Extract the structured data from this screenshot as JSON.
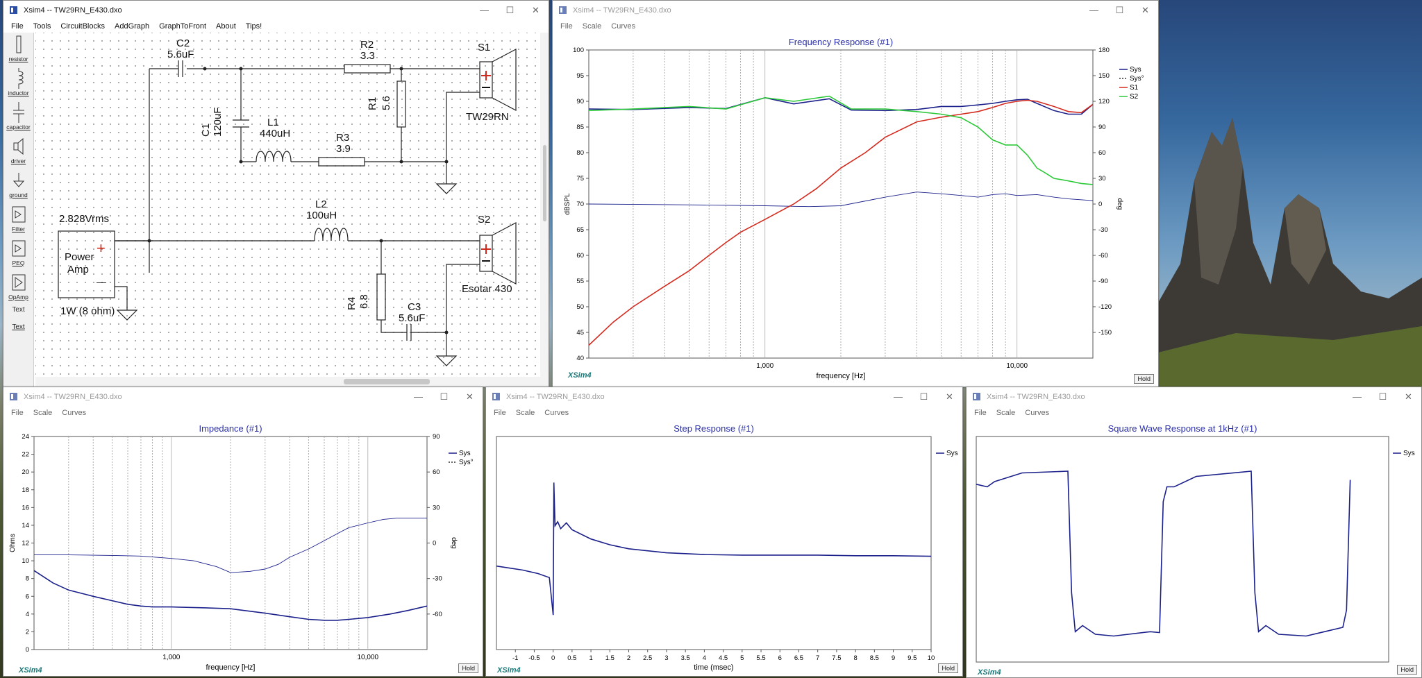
{
  "windows": {
    "schematic": {
      "title": "Xsim4 -- TW29RN_E430.dxo",
      "menu": [
        "File",
        "Tools",
        "CircuitBlocks",
        "AddGraph",
        "GraphToFront",
        "About",
        "Tips!"
      ]
    },
    "freq": {
      "title": "Xsim4 -- TW29RN_E430.dxo",
      "menu": [
        "File",
        "Scale",
        "Curves"
      ]
    },
    "imp": {
      "title": "Xsim4 -- TW29RN_E430.dxo",
      "menu": [
        "File",
        "Scale",
        "Curves"
      ]
    },
    "step": {
      "title": "Xsim4 -- TW29RN_E430.dxo",
      "menu": [
        "File",
        "Scale",
        "Curves"
      ]
    },
    "square": {
      "title": "Xsim4 -- TW29RN_E430.dxo",
      "menu": [
        "File",
        "Scale",
        "Curves"
      ]
    }
  },
  "window_controls": {
    "minimize": "—",
    "maximize": "☐",
    "close": "✕"
  },
  "palette": [
    {
      "label": "resistor",
      "icon": "resistor-icon"
    },
    {
      "label": "inductor",
      "icon": "inductor-icon"
    },
    {
      "label": "capacitor",
      "icon": "capacitor-icon"
    },
    {
      "label": "driver",
      "icon": "driver-icon"
    },
    {
      "label": "ground",
      "icon": "ground-icon"
    },
    {
      "label": "Filter",
      "icon": "filter-icon"
    },
    {
      "label": "PEQ",
      "icon": "peq-icon"
    },
    {
      "label": "OpAmp",
      "icon": "opamp-icon"
    },
    {
      "label": "Text",
      "icon": "text-icon"
    },
    {
      "label": "Text",
      "icon": "text-icon"
    }
  ],
  "schematic": {
    "C2": {
      "name": "C2",
      "value": "5.6uF"
    },
    "R2": {
      "name": "R2",
      "value": "3.3"
    },
    "S1": {
      "name": "S1",
      "model": "TW29RN"
    },
    "R1": {
      "name": "R1",
      "value": "5.6"
    },
    "C1": {
      "name": "C1",
      "value": "120uF"
    },
    "L1": {
      "name": "L1",
      "value": "440uH"
    },
    "R3": {
      "name": "R3",
      "value": "3.9"
    },
    "L2": {
      "name": "L2",
      "value": "100uH"
    },
    "S2": {
      "name": "S2",
      "model": "Esotar 430"
    },
    "R4": {
      "name": "R4",
      "value": "6.8"
    },
    "C3": {
      "name": "C3",
      "value": "5.6uF"
    },
    "amp": {
      "voltage": "2.828Vrms",
      "line1": "Power",
      "line2": "Amp",
      "plus": "+",
      "minus": "—",
      "power": "1W (8 ohm)"
    }
  },
  "hold_label": "Hold",
  "brand": "XSim4",
  "colors": {
    "sys": "#1a1f8a",
    "s1": "#d32a1e",
    "s2": "#2ec93a",
    "title": "#2a2fa8",
    "brand": "#1a7a7a"
  },
  "chart_data": [
    {
      "type": "line",
      "title": "Frequency Response (#1)",
      "xlabel": "frequency [Hz]",
      "ylabel": "dBSPL",
      "y2label": "deg",
      "xscale": "log",
      "xlim": [
        200,
        20000
      ],
      "ylim": [
        40,
        100
      ],
      "y2lim": [
        -180,
        180
      ],
      "xticks": [
        "1,000",
        "10,000"
      ],
      "yticks": [
        40,
        45,
        50,
        55,
        60,
        65,
        70,
        75,
        80,
        85,
        90,
        95,
        100
      ],
      "y2ticks": [
        -150,
        -120,
        -90,
        -60,
        -30,
        0,
        30,
        60,
        90,
        120,
        150,
        180
      ],
      "legend": "top-right",
      "grid": "vertical",
      "series": [
        {
          "name": "Sys",
          "x": [
            200,
            300,
            500,
            700,
            1000,
            1300,
            1800,
            2200,
            3000,
            4000,
            5000,
            6000,
            7000,
            8000,
            9000,
            10000,
            11000,
            12000,
            14000,
            16000,
            18000,
            20000
          ],
          "y": [
            88.5,
            88.4,
            88.8,
            88.6,
            90.7,
            89.5,
            90.5,
            88.3,
            88.2,
            88.4,
            89,
            89,
            89.3,
            89.6,
            90,
            90.3,
            90.4,
            89.6,
            88.2,
            87.5,
            87.5,
            89.4
          ]
        },
        {
          "name": "Sys°",
          "x": [
            200,
            500,
            1000,
            1500,
            2000,
            3000,
            4000,
            5000,
            6000,
            7000,
            8000,
            9000,
            10000,
            12000,
            14000,
            16000,
            20000
          ],
          "y": [
            0,
            -1,
            -2,
            -3,
            -2,
            8,
            14,
            12,
            10,
            8,
            11,
            12,
            10,
            11,
            8,
            6,
            4
          ]
        },
        {
          "name": "S1",
          "x": [
            200,
            250,
            300,
            400,
            500,
            600,
            700,
            800,
            1000,
            1300,
            1600,
            2000,
            2500,
            3000,
            4000,
            5000,
            6000,
            7000,
            8000,
            9000,
            10000,
            11000,
            12000,
            14000,
            16000,
            18000,
            20000
          ],
          "y": [
            42.5,
            47,
            50,
            54,
            57,
            60,
            62.5,
            64.5,
            67,
            70,
            73,
            77,
            80,
            83,
            86,
            86.9,
            87.5,
            88,
            88.8,
            89.6,
            90,
            90.2,
            90,
            89,
            88,
            87.8,
            89.4
          ]
        },
        {
          "name": "S2",
          "x": [
            200,
            300,
            500,
            700,
            1000,
            1300,
            1800,
            2200,
            3000,
            4000,
            5000,
            6000,
            7000,
            8000,
            9000,
            10000,
            11000,
            12000,
            13000,
            14000,
            16000,
            18000,
            20000
          ],
          "y": [
            88.2,
            88.5,
            89,
            88.5,
            90.7,
            90,
            91,
            88.5,
            88.5,
            88,
            87.5,
            86.8,
            85,
            82.5,
            81.5,
            81.5,
            79.5,
            77,
            76,
            75,
            74.5,
            74,
            73.8
          ]
        }
      ]
    },
    {
      "type": "line",
      "title": "Impedance (#1)",
      "xlabel": "frequency [Hz]",
      "ylabel": "Ohms",
      "y2label": "deg",
      "xscale": "log",
      "xlim": [
        200,
        20000
      ],
      "ylim": [
        0,
        24
      ],
      "y2lim": [
        -90,
        90
      ],
      "xticks": [
        "1,000",
        "10,000"
      ],
      "yticks": [
        0,
        2,
        4,
        6,
        8,
        10,
        12,
        14,
        16,
        18,
        20,
        22,
        24
      ],
      "y2ticks": [
        -60,
        -30,
        0,
        30,
        60,
        90
      ],
      "legend": "top-right",
      "grid": "vertical",
      "series": [
        {
          "name": "Sys",
          "x": [
            200,
            250,
            300,
            400,
            500,
            600,
            700,
            800,
            1000,
            1500,
            2000,
            3000,
            4000,
            5000,
            6000,
            7000,
            8000,
            10000,
            13000,
            16000,
            20000
          ],
          "y": [
            8.9,
            7.5,
            6.7,
            6,
            5.5,
            5.1,
            4.9,
            4.8,
            4.8,
            4.7,
            4.6,
            4.1,
            3.7,
            3.4,
            3.3,
            3.3,
            3.4,
            3.6,
            4,
            4.4,
            4.9
          ]
        },
        {
          "name": "Sys°",
          "x": [
            200,
            300,
            500,
            700,
            1000,
            1300,
            1700,
            2000,
            2500,
            3000,
            3500,
            4000,
            5000,
            6000,
            7000,
            8000,
            10000,
            12000,
            14000,
            17000,
            20000
          ],
          "y": [
            -10,
            -10,
            -10.5,
            -11,
            -13,
            -15,
            -20,
            -25,
            -24,
            -22,
            -18,
            -12,
            -5,
            2,
            8,
            13,
            17,
            20,
            21,
            21,
            21
          ]
        }
      ]
    },
    {
      "type": "line",
      "title": "Step Response (#1)",
      "xlabel": "time (msec)",
      "xlim": [
        -1.5,
        10
      ],
      "xticks": [
        "-1",
        "-0.5",
        "0",
        "0.5",
        "1",
        "1.5",
        "2",
        "2.5",
        "3",
        "3.5",
        "4",
        "4.5",
        "5",
        "5.5",
        "6",
        "6.5",
        "7",
        "7.5",
        "8",
        "8.5",
        "9",
        "9.5",
        "10"
      ],
      "legend": "top-right",
      "series": [
        {
          "name": "Sys",
          "x": [
            -1.5,
            -1.2,
            -0.8,
            -0.4,
            -0.1,
            0,
            0.02,
            0.05,
            0.12,
            0.2,
            0.35,
            0.5,
            1,
            1.5,
            2,
            3,
            4,
            5,
            6,
            7,
            8,
            9,
            10
          ],
          "y": [
            -0.05,
            -0.08,
            -0.12,
            -0.18,
            -0.25,
            -0.9,
            1.4,
            0.65,
            0.72,
            0.6,
            0.7,
            0.58,
            0.42,
            0.32,
            0.25,
            0.18,
            0.15,
            0.14,
            0.14,
            0.14,
            0.13,
            0.13,
            0.12
          ]
        }
      ]
    },
    {
      "type": "line",
      "title": "Square Wave Response at 1kHz (#1)",
      "xlim": [
        0,
        2.25
      ],
      "ylim": [
        -1.3,
        1.3
      ],
      "legend": "top-right",
      "series": [
        {
          "name": "Sys",
          "x": [
            0,
            0.06,
            0.1,
            0.25,
            0.5,
            0.52,
            0.54,
            0.58,
            0.65,
            0.75,
            0.95,
            1.0,
            1.02,
            1.04,
            1.08,
            1.2,
            1.5,
            1.52,
            1.54,
            1.58,
            1.65,
            1.8,
            2.0,
            2.02,
            2.04
          ],
          "y": [
            0.75,
            0.72,
            0.78,
            0.88,
            0.9,
            -0.5,
            -0.95,
            -0.88,
            -0.98,
            -1.0,
            -0.95,
            -0.96,
            0.55,
            0.72,
            0.72,
            0.84,
            0.9,
            -0.5,
            -0.95,
            -0.88,
            -0.98,
            -1.0,
            -0.9,
            -0.7,
            0.8
          ]
        }
      ]
    }
  ]
}
